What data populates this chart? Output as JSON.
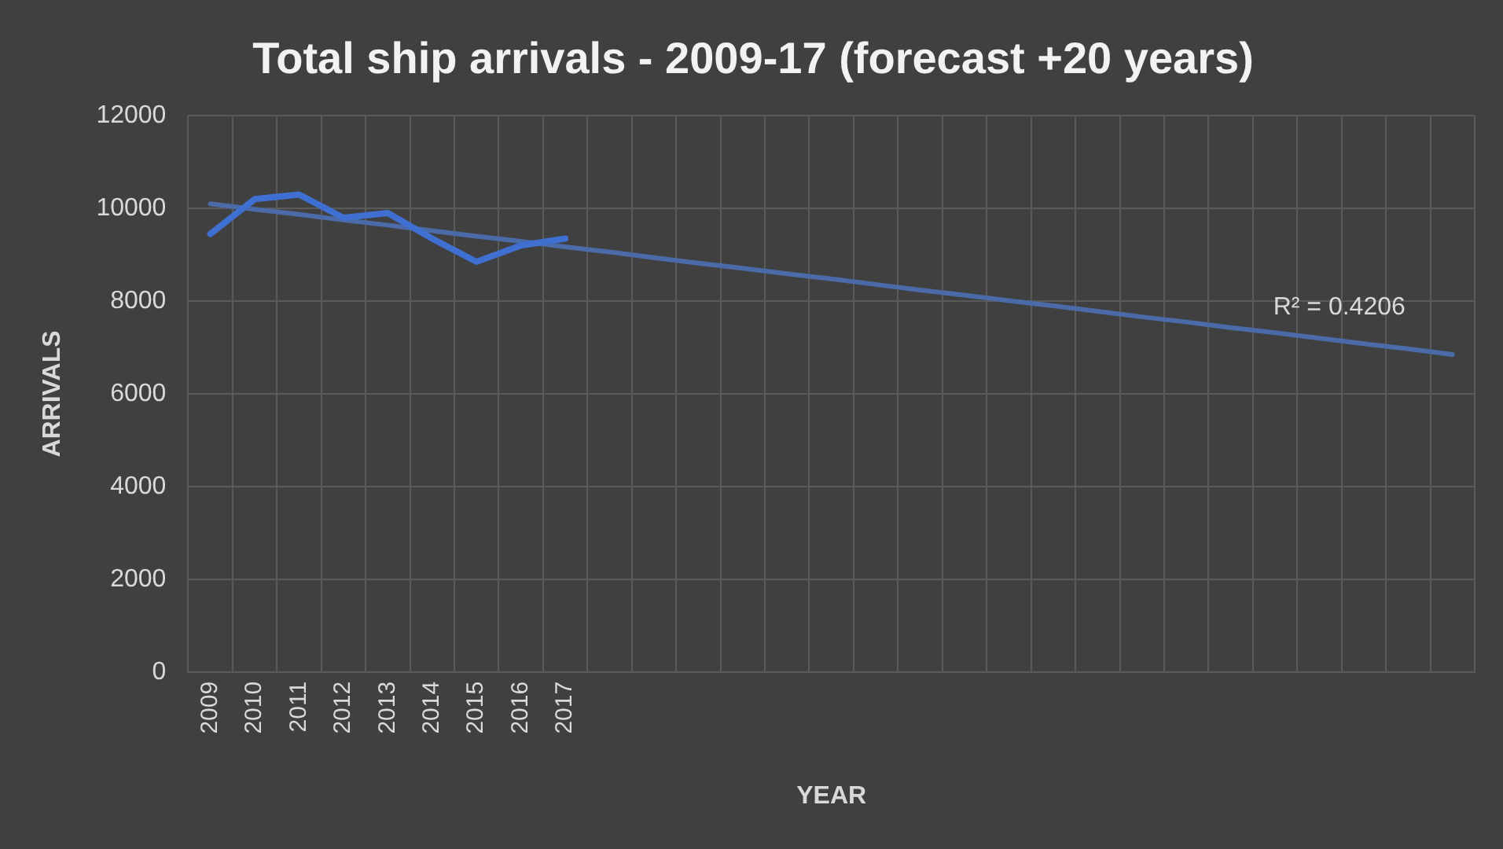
{
  "chart_data": {
    "type": "line",
    "title": "Total ship arrivals - 2009-17 (forecast +20 years)",
    "xlabel": "YEAR",
    "ylabel": "ARRIVALS",
    "categories": [
      "2009",
      "2010",
      "2011",
      "2012",
      "2013",
      "2014",
      "2015",
      "2016",
      "2017",
      null,
      null,
      null,
      null,
      null,
      null,
      null,
      null,
      null,
      null,
      null,
      null,
      null,
      null,
      null,
      null,
      null,
      null,
      null,
      null
    ],
    "series": [
      {
        "color": "#3f6fd0",
        "values": [
          9450,
          10200,
          10300,
          9800,
          9900,
          9350,
          8850,
          9200,
          9350,
          null,
          null,
          null,
          null,
          null,
          null,
          null,
          null,
          null,
          null,
          null,
          null,
          null,
          null,
          null,
          null,
          null,
          null,
          null,
          null
        ]
      },
      {
        "color": "#4a6aa8",
        "values": [
          10100,
          9980,
          9870,
          9750,
          9640,
          9520,
          9400,
          9290,
          9170,
          9060,
          8940,
          8820,
          8710,
          8590,
          8480,
          8360,
          8240,
          8130,
          8010,
          7900,
          7780,
          7660,
          7550,
          7430,
          7320,
          7200,
          7080,
          6970,
          6850
        ]
      }
    ],
    "annotations": [
      "R² = 0.4206"
    ],
    "ylim": [
      0,
      12000
    ],
    "yticks": [
      0,
      2000,
      4000,
      6000,
      8000,
      10000,
      12000
    ],
    "grid": true,
    "legend": false,
    "marker": "none"
  }
}
